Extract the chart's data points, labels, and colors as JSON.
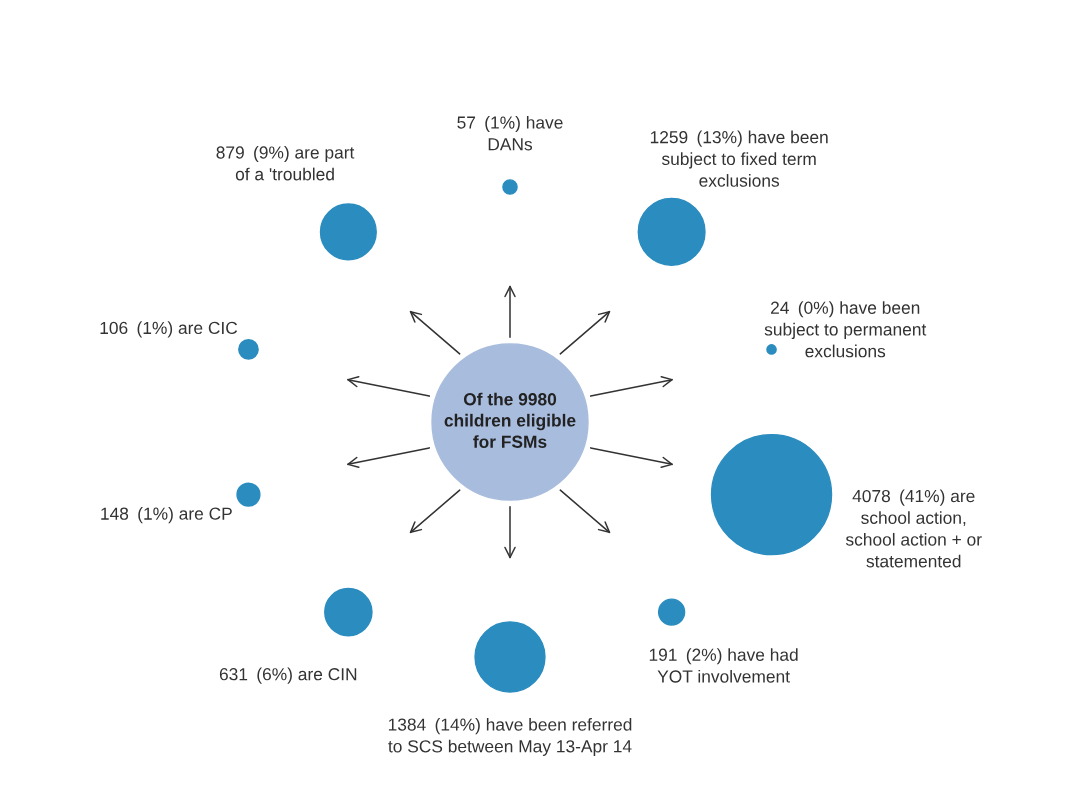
{
  "chart_data": {
    "type": "other",
    "title": "Of the 9980\nchildren eligible\nfor FSMs",
    "categories": [
      "(1%) have\nDANs",
      "(13%) have been\nsubject to fixed term\nexclusions",
      "(0%) have been\nsubject to permanent\nexclusions",
      "(41%) are\nschool action,\nschool action + or\nstatemented",
      "(2%) have had\nYOT involvement",
      "(14%) have been referred\nto SCS between May 13-Apr 14",
      "(6%) are CIN",
      "(1%) are CP",
      "(1%) are CIC",
      "(9%) are part\nof a 'troubled"
    ],
    "values": [
      57,
      1259,
      24,
      4078,
      191,
      1384,
      631,
      148,
      106,
      879
    ],
    "color": "#2b8cbf",
    "data_labels": true
  }
}
